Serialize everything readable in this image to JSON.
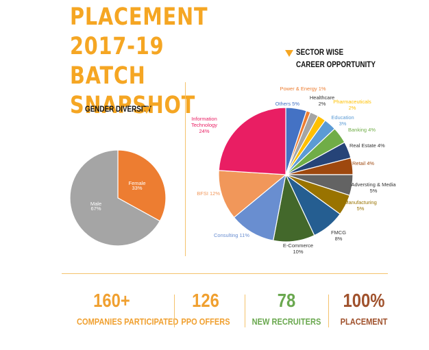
{
  "header": {
    "title_line1": "PLACEMENT 2017-19",
    "title_line2": "BATCH SNAPSHOT",
    "sector_label_line1": "SECTOR WISE",
    "sector_label_line2": "CAREER OPPORTUNITY",
    "gender_label": "GENDER DIVERSITY"
  },
  "colors": {
    "accent": "#f5a623"
  },
  "chart_data": [
    {
      "type": "pie",
      "series": [
        {
          "label": "Female",
          "value": 33,
          "text": "33%",
          "color": "#ed7d31"
        },
        {
          "label": "Male",
          "value": 67,
          "text": "67%",
          "color": "#a5a5a5"
        }
      ]
    },
    {
      "type": "pie",
      "series": [
        {
          "label": "Others",
          "value": 5,
          "text": "5%",
          "color": "#4472c4"
        },
        {
          "label": "Power & Energy",
          "value": 1,
          "text": "1%",
          "color": "#ed7d31"
        },
        {
          "label": "Healthcare",
          "value": 2,
          "text": "2%",
          "color": "#a5a5a5"
        },
        {
          "label": "Pharmaceuticals",
          "value": 2,
          "text": "2%",
          "color": "#ffc000"
        },
        {
          "label": "Education",
          "value": 3,
          "text": "3%",
          "color": "#5b9bd5"
        },
        {
          "label": "Banking",
          "value": 4,
          "text": "4%",
          "color": "#70ad47"
        },
        {
          "label": "Real Estate",
          "value": 4,
          "text": "4%",
          "color": "#264478"
        },
        {
          "label": "Retail",
          "value": 4,
          "text": "4%",
          "color": "#9e480e"
        },
        {
          "label": "Adversting & Media",
          "value": 5,
          "text": "5%",
          "color": "#636363"
        },
        {
          "label": "Manufacturing",
          "value": 5,
          "text": "5%",
          "color": "#997300"
        },
        {
          "label": "FMCG",
          "value": 8,
          "text": "8%",
          "color": "#255e91"
        },
        {
          "label": "E-Commerce",
          "value": 10,
          "text": "10%",
          "color": "#43682b"
        },
        {
          "label": "Consulting",
          "value": 11,
          "text": "11%",
          "color": "#698ed0"
        },
        {
          "label": "BFSI",
          "value": 12,
          "text": "12%",
          "color": "#f1975a"
        },
        {
          "label": "Information Technology",
          "value": 24,
          "text": "24%",
          "color": "#e91e63"
        }
      ]
    }
  ],
  "stats": [
    {
      "value": "160+",
      "label": "COMPANIES PARTICIPATED",
      "color": "#f0a030"
    },
    {
      "value": "126",
      "label": "PPO OFFERS",
      "color": "#f0a030"
    },
    {
      "value": "78",
      "label": "NEW RECRUITERS",
      "color": "#6aa84f"
    },
    {
      "value": "100%",
      "label": "PLACEMENT",
      "color": "#a0522d"
    }
  ]
}
